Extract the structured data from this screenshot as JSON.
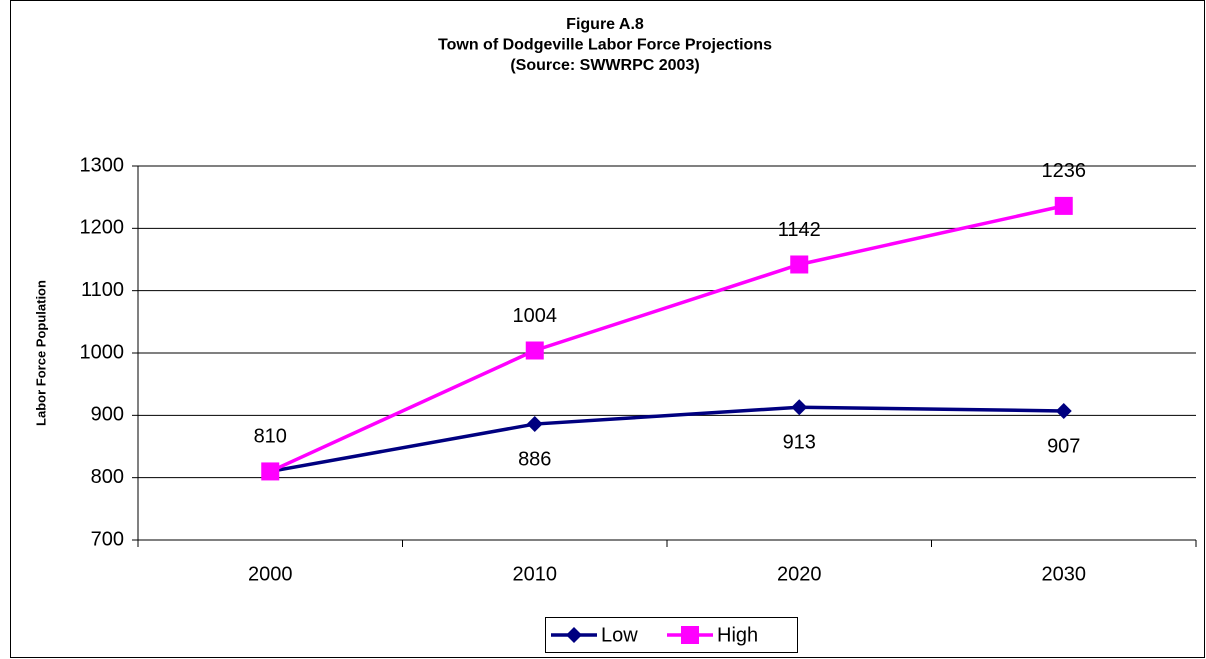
{
  "chart_data": {
    "type": "line",
    "title": [
      "Figure A.8",
      "Town of Dodgeville Labor Force Projections",
      "(Source:  SWWRPC 2003)"
    ],
    "y_label": "Labor Force Population",
    "categories": [
      "2000",
      "2010",
      "2020",
      "2030"
    ],
    "series": [
      {
        "name": "Low",
        "color": "#000080",
        "marker": "diamond",
        "values": [
          810,
          886,
          913,
          907
        ]
      },
      {
        "name": "High",
        "color": "#ff00ff",
        "marker": "square",
        "values": [
          810,
          1004,
          1142,
          1236
        ]
      }
    ],
    "ylim": [
      700,
      1300
    ],
    "yticks": [
      700,
      800,
      900,
      1000,
      1100,
      1200,
      1300
    ],
    "grid": true,
    "legend": "bottom"
  }
}
